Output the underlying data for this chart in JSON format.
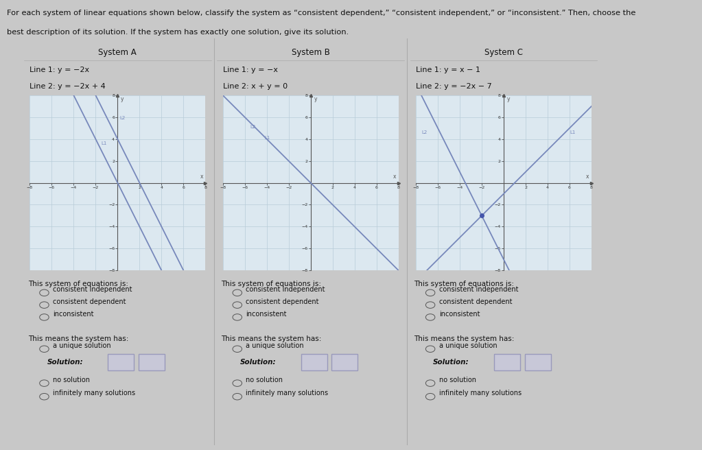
{
  "bg_color": "#c8c8c8",
  "box_bg": "#f5f5f5",
  "graph_bg": "#dce8f0",
  "header_text_line1": "For each system of linear equations shown below, classify the system as “consistent dependent,” “consistent independent,” or “inconsistent.” Then, choose the",
  "header_text_line2": "best description of its solution. If the system has exactly one solution, give its solution.",
  "systems": [
    "System A",
    "System B",
    "System C"
  ],
  "line1_labels": [
    "Line 1: y = −2x",
    "Line 1: y = −x",
    "Line 1: y = x − 1"
  ],
  "line2_labels": [
    "Line 2: y = −2x + 4",
    "Line 2: x + y = 0",
    "Line 2: y = −2x − 7"
  ],
  "radio_options": [
    "consistent independent",
    "consistent dependent",
    "inconsistent"
  ],
  "means_header": "This means the system has:",
  "classify_header": "This system of equations is:",
  "graph_color": "#7788bb",
  "axis_color": "#555555",
  "grid_color": "#b8ccd8",
  "border_color": "#aaaaaa",
  "text_color": "#111111"
}
